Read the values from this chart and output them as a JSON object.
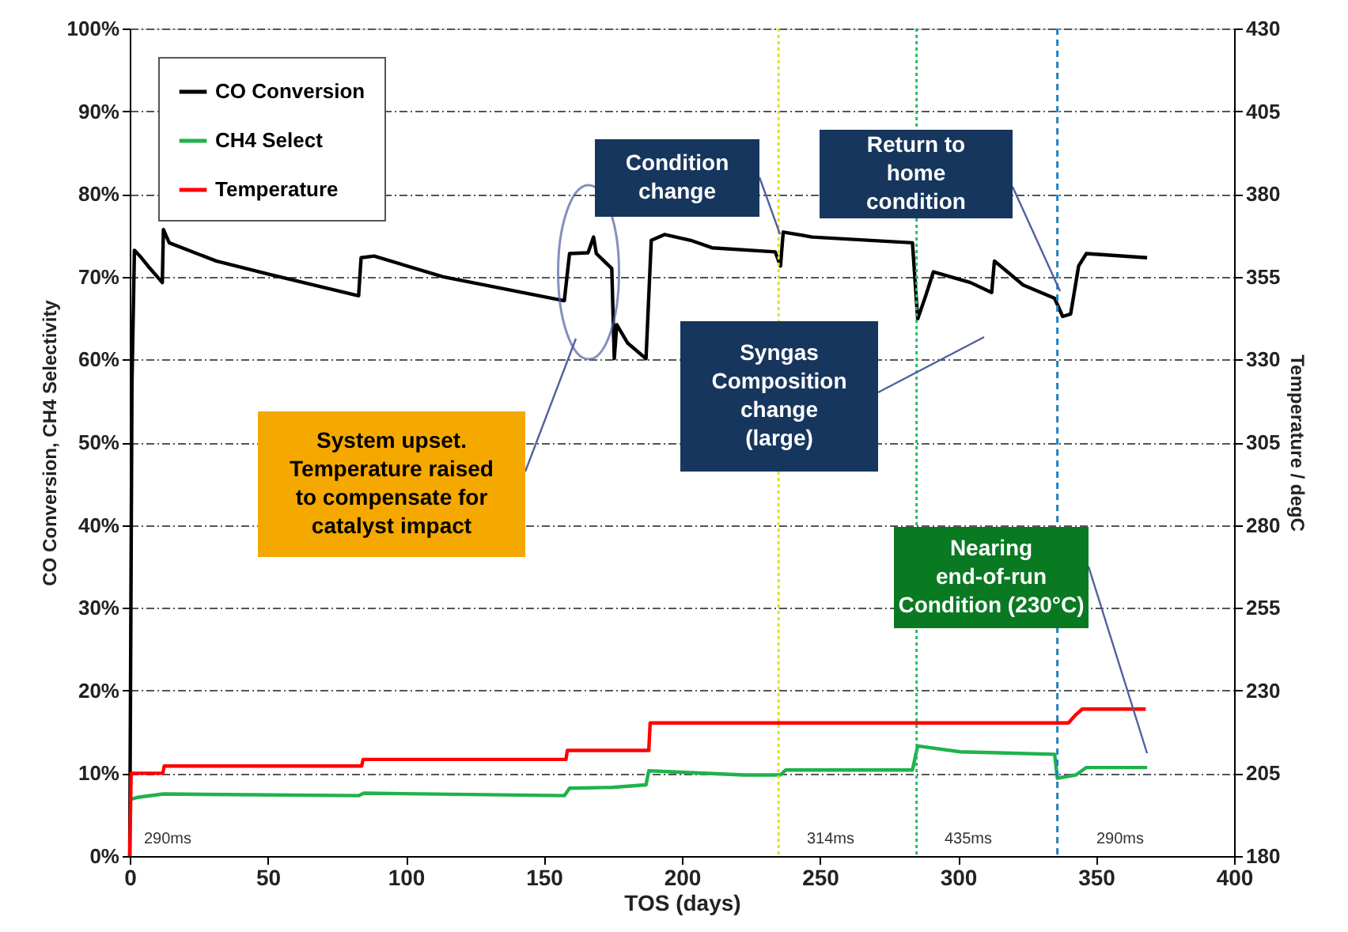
{
  "chart_data": {
    "type": "line",
    "xlabel": "TOS  (days)",
    "ylabel": "CO Conversion, CH4 Selectivity",
    "y2label": "Temperature / degC",
    "xlim": [
      0,
      400
    ],
    "xticks": [
      0,
      50,
      100,
      150,
      200,
      250,
      300,
      350,
      400
    ],
    "ylim": [
      0,
      100
    ],
    "yticks": [
      {
        "value": 0,
        "label": "0%"
      },
      {
        "value": 10,
        "label": "10%"
      },
      {
        "value": 20,
        "label": "20%"
      },
      {
        "value": 30,
        "label": "30%"
      },
      {
        "value": 40,
        "label": "40%"
      },
      {
        "value": 50,
        "label": "50%"
      },
      {
        "value": 60,
        "label": "60%"
      },
      {
        "value": 70,
        "label": "70%"
      },
      {
        "value": 80,
        "label": "80%"
      },
      {
        "value": 90,
        "label": "90%"
      },
      {
        "value": 100,
        "label": "100%"
      }
    ],
    "y2lim": [
      180,
      430
    ],
    "y2ticks": [
      180,
      205,
      230,
      255,
      280,
      305,
      330,
      355,
      380,
      405,
      430
    ],
    "grid": "y",
    "legend": "top left",
    "series": [
      {
        "name": "CO Conversion",
        "color": "#000000",
        "x": [
          0,
          0.8,
          1.7,
          3.7,
          6.6,
          11.8,
          12.2,
          14.3,
          31.3,
          50.4,
          82.9,
          83.8,
          88.5,
          113.5,
          157.4,
          159.3,
          166,
          168,
          169,
          174.6,
          175.5,
          176.4,
          180.3,
          187,
          188.9,
          193.7,
          203.2,
          210.9,
          233.8,
          235.7,
          236.7,
          247.2,
          283.5,
          285.4,
          288.3,
          291.1,
          304.5,
          312.2,
          313.2,
          323.6,
          335,
          337.9,
          340.8,
          343.7,
          346.5,
          368.5
        ],
        "values": [
          0,
          57,
          73.2,
          72.5,
          71.3,
          69.3,
          75.7,
          74.1,
          71.9,
          70.3,
          67.7,
          72.3,
          72.5,
          70.0,
          67.1,
          72.8,
          72.9,
          74.8,
          72.8,
          71.0,
          60.1,
          64.2,
          62.0,
          60.1,
          74.4,
          75.1,
          74.4,
          73.5,
          73.0,
          71.3,
          75.4,
          74.8,
          74.1,
          64.9,
          67.7,
          70.6,
          69.3,
          68.1,
          71.9,
          69.0,
          67.4,
          65.2,
          65.5,
          71.3,
          72.8,
          72.3
        ]
      },
      {
        "name": "CH4 Select",
        "color": "#1fb24a",
        "x": [
          0.8,
          3,
          12.2,
          82.9,
          84.8,
          157.4,
          159.3,
          174.6,
          187,
          188,
          222.3,
          235.7,
          237.6,
          283.5,
          285.4,
          300.8,
          335,
          336,
          342.7,
          346.5,
          368.5
        ],
        "values": [
          6.9,
          7.1,
          7.5,
          7.3,
          7.6,
          7.3,
          8.2,
          8.3,
          8.6,
          10.3,
          9.8,
          9.8,
          10.4,
          10.4,
          13.3,
          12.6,
          12.3,
          9.4,
          9.8,
          10.7,
          10.7
        ]
      },
      {
        "name": "Temperature",
        "color": "#ff0000",
        "axis": "y2",
        "x": [
          0,
          0.5,
          12,
          12.5,
          84,
          84.5,
          158,
          158.5,
          188,
          188.5,
          340,
          342.7,
          345,
          368
        ],
        "values": [
          180,
          205,
          205,
          207.2,
          207.2,
          209.2,
          209.2,
          211.9,
          211.9,
          220.2,
          220.2,
          222.7,
          224.4,
          224.4
        ]
      }
    ],
    "ref_lines": [
      {
        "axis": "x",
        "value": 235,
        "color": "#e0e020",
        "line_style": "dotted"
      },
      {
        "axis": "x",
        "value": 285,
        "color": "#20c060",
        "line_style": "dotted"
      },
      {
        "axis": "x",
        "value": 336,
        "color": "#2080c0",
        "line_style": "dashed"
      }
    ],
    "annotations": [
      "Condition change",
      "Return to home condition",
      "Syngas Composition change (large)",
      "System upset. Temperature raised to compensate for catalyst impact",
      "Nearing end-of-run Condition (230°C)",
      "290ms",
      "314ms",
      "435ms",
      "290ms"
    ]
  }
}
